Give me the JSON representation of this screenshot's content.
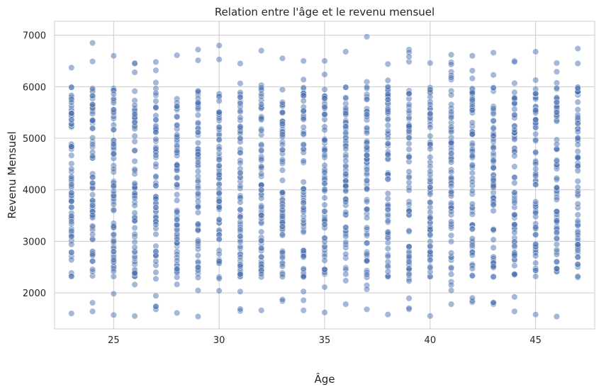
{
  "chart_data": {
    "type": "scatter",
    "title": "Relation entre l'âge et le revenu mensuel",
    "xlabel": "Âge",
    "ylabel": "Revenu Mensuel",
    "xlim": [
      22.2,
      47.8
    ],
    "ylim": [
      1300,
      7270
    ],
    "xticks": [
      25,
      30,
      35,
      40,
      45
    ],
    "yticks": [
      2000,
      3000,
      4000,
      5000,
      6000,
      7000
    ],
    "grid": true,
    "legend": "none",
    "marker_color": "#4c72b0",
    "marker_alpha": 0.5,
    "series": [
      {
        "ages": [
          23,
          24,
          25,
          26,
          27,
          28,
          29,
          30,
          31,
          32,
          33,
          34,
          35,
          36,
          37,
          38,
          39,
          40,
          41,
          42,
          43,
          44,
          45,
          46,
          47
        ],
        "income_min": [
          1600,
          1640,
          1570,
          1550,
          1680,
          1610,
          1540,
          2040,
          1650,
          1660,
          1840,
          1660,
          1620,
          1780,
          1680,
          1580,
          1680,
          1550,
          1780,
          1820,
          1780,
          1640,
          1580,
          1540,
          2300
        ],
        "income_max": [
          6370,
          6850,
          6600,
          6460,
          6480,
          6610,
          6720,
          6800,
          6450,
          6700,
          6550,
          6500,
          6500,
          6680,
          6970,
          6440,
          6720,
          6460,
          6620,
          6600,
          6660,
          6500,
          6680,
          6460,
          6740
        ]
      }
    ]
  }
}
